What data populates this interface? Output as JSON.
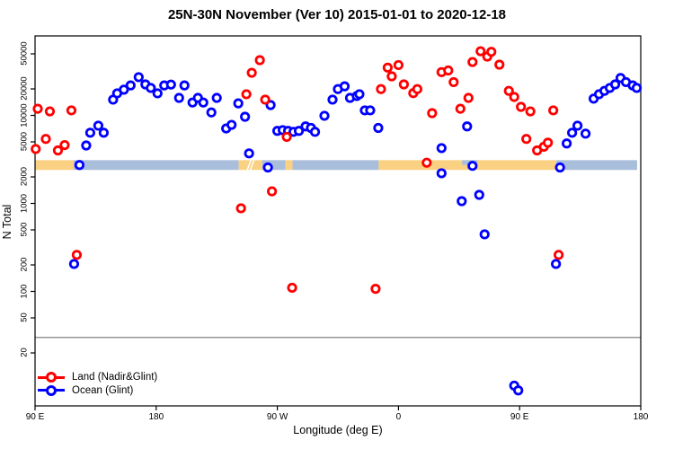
{
  "header": {
    "title": "25N-30N November (Ver 10)   2015-01-01 to 2020-12-18"
  },
  "chart_data": {
    "type": "scatter",
    "title": "25N-30N November (Ver 10)   2015-01-01 to 2020-12-18",
    "xlabel": "Longitude (deg E)",
    "ylabel": "N Total",
    "x_axis": {
      "range": [
        90,
        540
      ],
      "ticks": [
        {
          "value": 90,
          "label": "90 E"
        },
        {
          "value": 180,
          "label": "180"
        },
        {
          "value": 270,
          "label": "90 W"
        },
        {
          "value": 360,
          "label": "0"
        },
        {
          "value": 450,
          "label": "90 E"
        },
        {
          "value": 540,
          "label": "180"
        }
      ]
    },
    "y_axis": {
      "scale": "log",
      "range": [
        5,
        80000
      ],
      "ticks": [
        20,
        50,
        100,
        200,
        500,
        1000,
        2000,
        5000,
        10000,
        20000,
        50000
      ]
    },
    "reference_line": {
      "value": 30,
      "color": "#969696"
    },
    "coast_band": {
      "value_range": [
        2400,
        3100
      ],
      "land_color": "#FAD182",
      "ocean_color": "#A9BEDB",
      "segments": [
        {
          "from": 90,
          "to": 118.7,
          "surface": "land"
        },
        {
          "from": 118.7,
          "to": 241.3,
          "surface": "ocean"
        },
        {
          "from": 241.3,
          "to": 258.7,
          "surface": "land"
        },
        {
          "from": 258.7,
          "to": 276,
          "surface": "ocean"
        },
        {
          "from": 276,
          "to": 281.3,
          "surface": "land"
        },
        {
          "from": 281.3,
          "to": 345.3,
          "surface": "ocean"
        },
        {
          "from": 345.3,
          "to": 477.3,
          "surface": "land"
        },
        {
          "from": 477.3,
          "to": 537.3,
          "surface": "ocean"
        }
      ],
      "ocean_inlets_top_half": [
        {
          "from": 407.3,
          "to": 418.7
        }
      ],
      "slash_marks": [
        249,
        251.3
      ]
    },
    "legend": {
      "position": "bottom-left",
      "entries": [
        "Land (Nadir&Glint)",
        "Ocean (Glint)"
      ]
    },
    "series": [
      {
        "name": "Land (Nadir&Glint)",
        "color": "#FF0000",
        "points": [
          [
            90.5,
            4150
          ],
          [
            92,
            11900
          ],
          [
            98,
            5400
          ],
          [
            101,
            11100
          ],
          [
            107,
            4000
          ],
          [
            112,
            4600
          ],
          [
            117,
            11400
          ],
          [
            121,
            260
          ],
          [
            243,
            880
          ],
          [
            247,
            17400
          ],
          [
            251,
            30500
          ],
          [
            257,
            42400
          ],
          [
            261,
            15100
          ],
          [
            266,
            1370
          ],
          [
            277,
            5700
          ],
          [
            281,
            110
          ],
          [
            343,
            107
          ],
          [
            347,
            19900
          ],
          [
            352,
            34900
          ],
          [
            355,
            27800
          ],
          [
            360,
            37300
          ],
          [
            364,
            22500
          ],
          [
            371,
            17900
          ],
          [
            374,
            19900
          ],
          [
            381,
            2900
          ],
          [
            385,
            10600
          ],
          [
            392,
            31000
          ],
          [
            397,
            32400
          ],
          [
            401,
            23900
          ],
          [
            406,
            11900
          ],
          [
            412,
            15800
          ],
          [
            415,
            40400
          ],
          [
            421,
            53600
          ],
          [
            426,
            46600
          ],
          [
            429,
            52800
          ],
          [
            435,
            37700
          ],
          [
            442,
            19000
          ],
          [
            446,
            16200
          ],
          [
            451,
            12500
          ],
          [
            455,
            5400
          ],
          [
            458,
            11100
          ],
          [
            463,
            4000
          ],
          [
            468,
            4400
          ],
          [
            471,
            4900
          ],
          [
            475,
            11400
          ],
          [
            479,
            260
          ]
        ]
      },
      {
        "name": "Ocean (Glint)",
        "color": "#0000FF",
        "points": [
          [
            119,
            205
          ],
          [
            123,
            2730
          ],
          [
            128,
            4550
          ],
          [
            131,
            6350
          ],
          [
            137,
            7640
          ],
          [
            141,
            6350
          ],
          [
            148,
            15100
          ],
          [
            151,
            17800
          ],
          [
            156,
            19600
          ],
          [
            161,
            21900
          ],
          [
            167,
            27200
          ],
          [
            172,
            22500
          ],
          [
            176,
            20500
          ],
          [
            181,
            17800
          ],
          [
            186,
            21900
          ],
          [
            191,
            22400
          ],
          [
            197,
            15800
          ],
          [
            201,
            21900
          ],
          [
            207,
            14000
          ],
          [
            211,
            15800
          ],
          [
            215,
            14000
          ],
          [
            221,
            10800
          ],
          [
            225,
            15800
          ],
          [
            232,
            7100
          ],
          [
            236,
            7800
          ],
          [
            241,
            13700
          ],
          [
            246,
            9650
          ],
          [
            249,
            3700
          ],
          [
            263,
            2560
          ],
          [
            265,
            13100
          ],
          [
            270,
            6670
          ],
          [
            274,
            6800
          ],
          [
            278,
            6670
          ],
          [
            282,
            6500
          ],
          [
            286,
            6670
          ],
          [
            291,
            7500
          ],
          [
            295,
            7200
          ],
          [
            298,
            6500
          ],
          [
            305,
            9900
          ],
          [
            311,
            15100
          ],
          [
            315,
            19900
          ],
          [
            320,
            21400
          ],
          [
            324,
            15800
          ],
          [
            329,
            16600
          ],
          [
            331,
            17400
          ],
          [
            335,
            11400
          ],
          [
            339,
            11400
          ],
          [
            345,
            7200
          ],
          [
            392,
            4250
          ],
          [
            392,
            2200
          ],
          [
            407,
            1060
          ],
          [
            411,
            7500
          ],
          [
            415,
            2670
          ],
          [
            420,
            1250
          ],
          [
            424,
            445
          ],
          [
            446,
            8.5
          ],
          [
            449,
            7.5
          ],
          [
            477,
            205
          ],
          [
            480,
            2560
          ],
          [
            485,
            4800
          ],
          [
            489,
            6350
          ],
          [
            493,
            7640
          ],
          [
            499,
            6200
          ],
          [
            505,
            15500
          ],
          [
            509,
            17400
          ],
          [
            513,
            19000
          ],
          [
            517,
            20500
          ],
          [
            521,
            22500
          ],
          [
            525,
            26600
          ],
          [
            529,
            23900
          ],
          [
            534,
            21900
          ],
          [
            537,
            20500
          ]
        ]
      }
    ]
  }
}
